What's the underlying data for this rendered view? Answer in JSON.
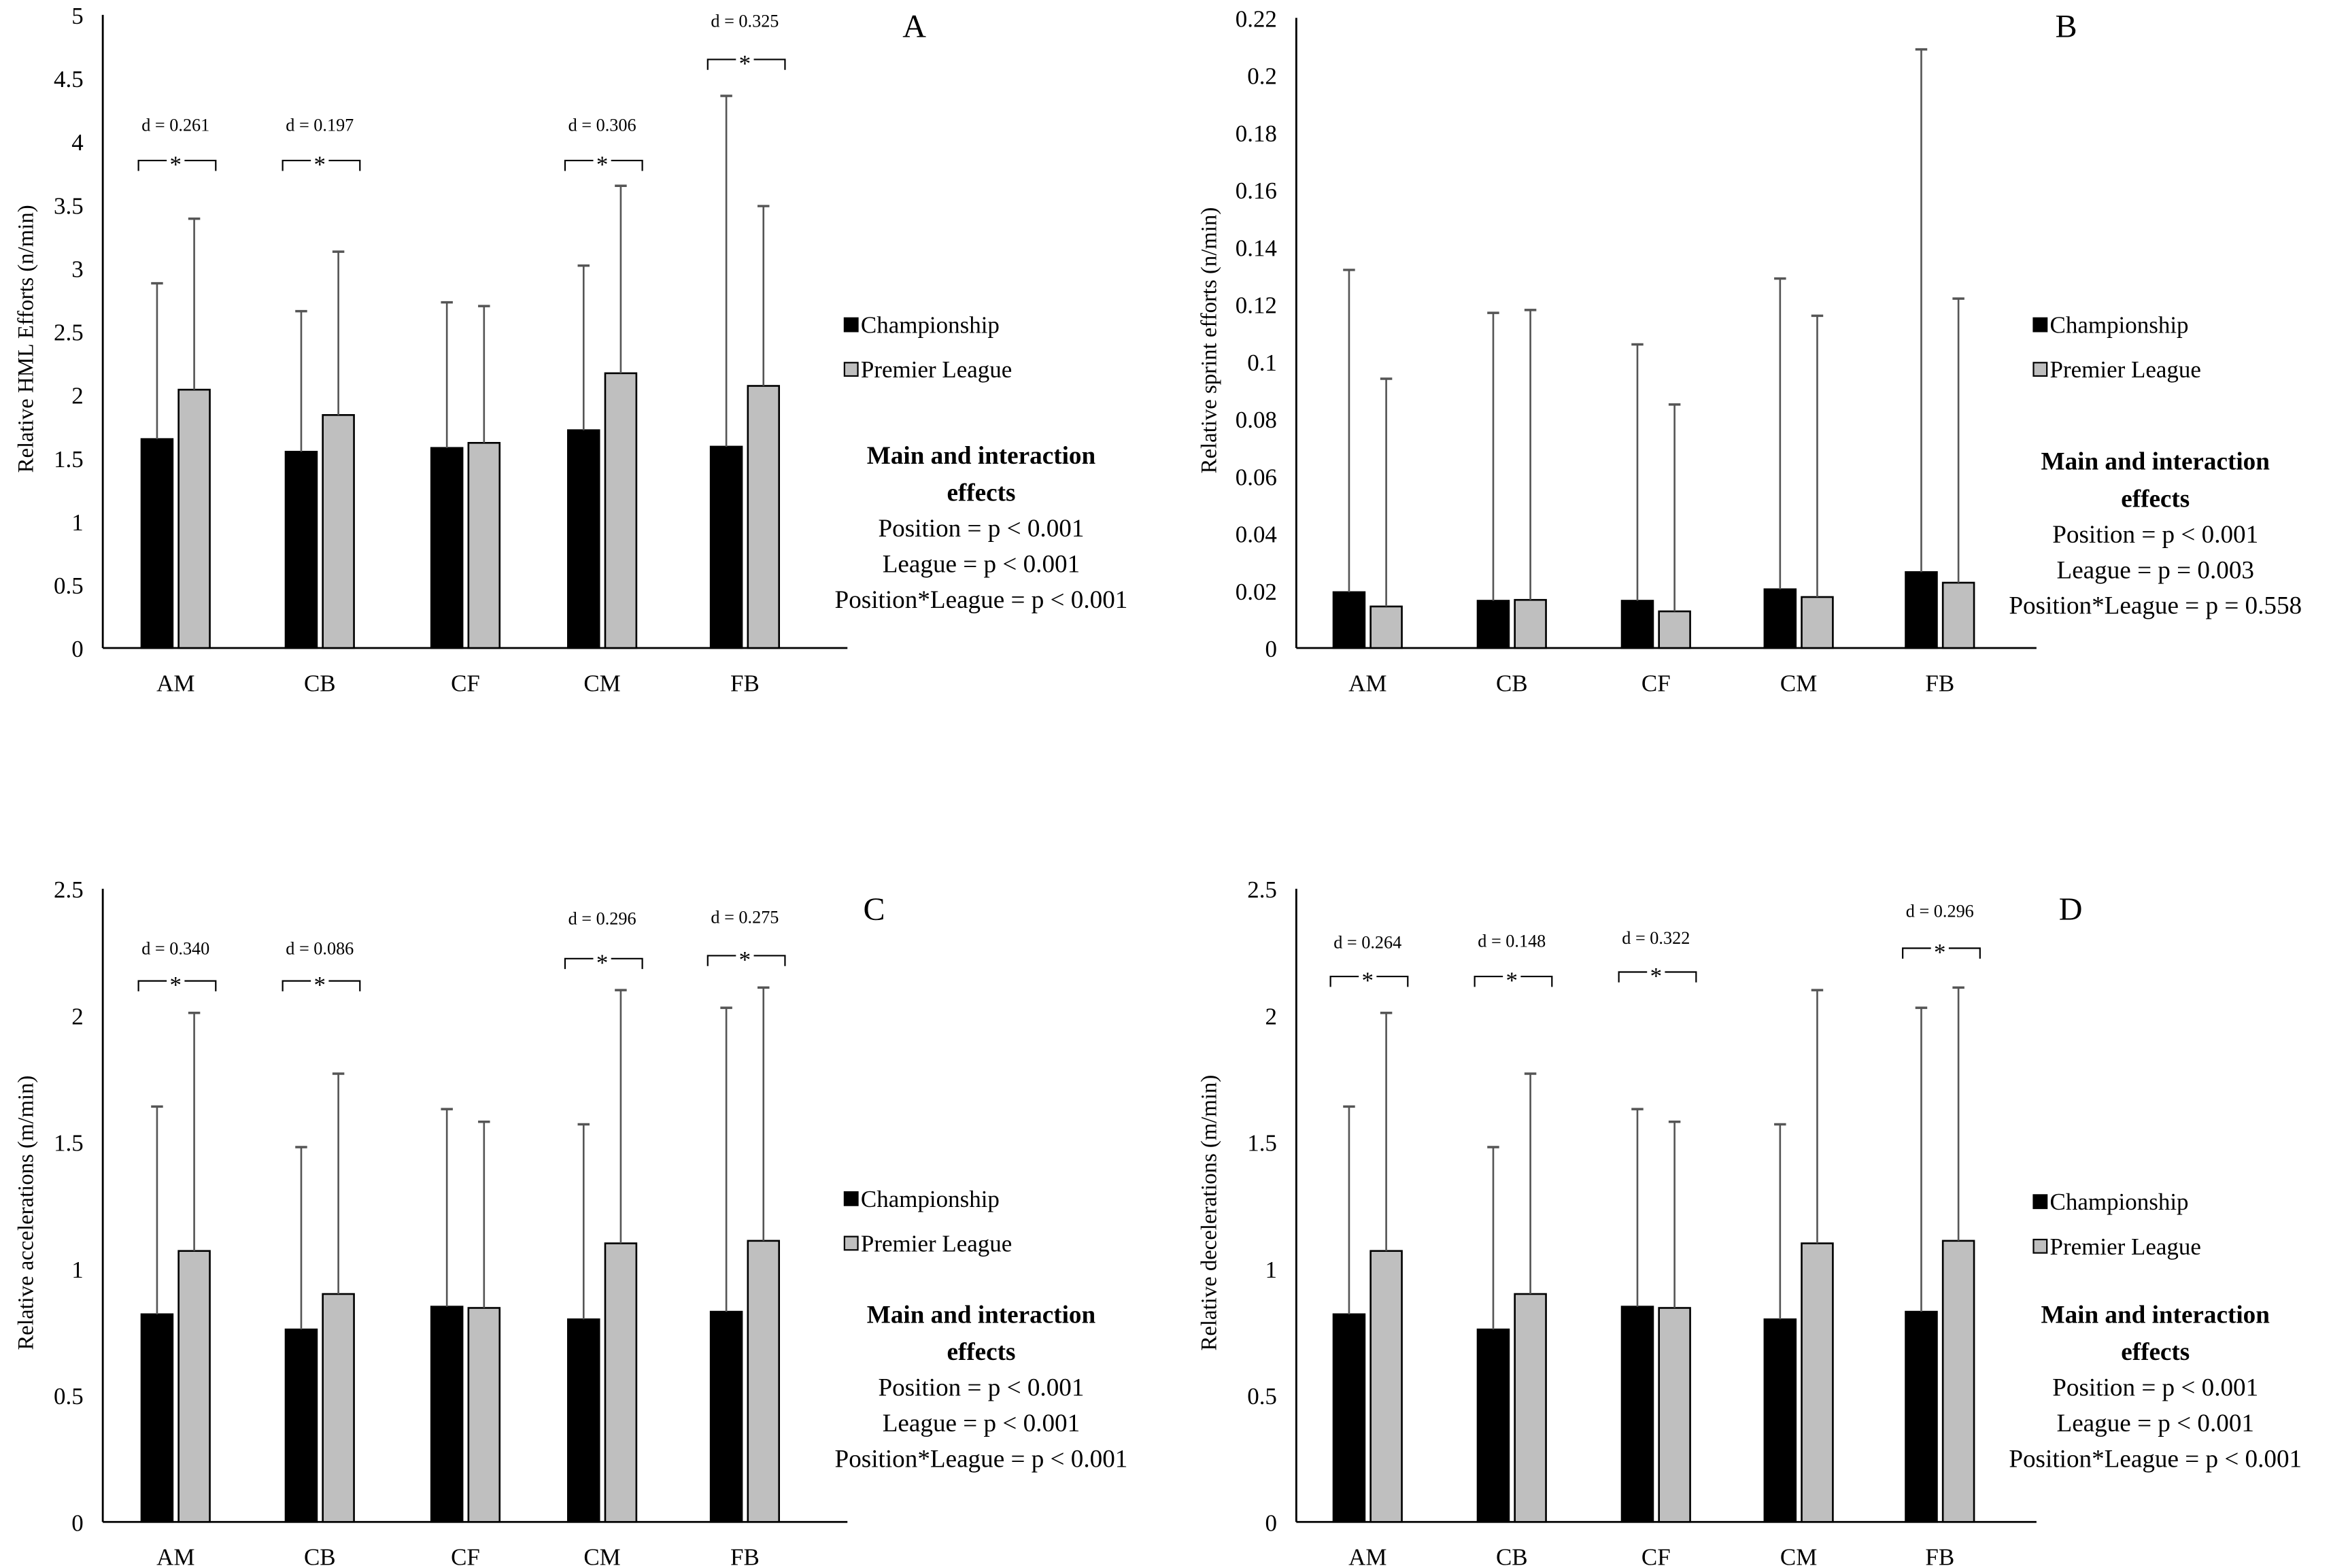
{
  "chart_data": [
    {
      "type": "bar",
      "panel_label": "A",
      "ylabel": "Relative HML Efforts (n/min)",
      "ylim": [
        0,
        5
      ],
      "yticks": [
        "0",
        "0.5",
        "1",
        "1.5",
        "2",
        "2.5",
        "3",
        "3.5",
        "4",
        "4.5",
        "5"
      ],
      "categories": [
        "AM",
        "CB",
        "CF",
        "CM",
        "FB"
      ],
      "series": [
        {
          "name": "Championship",
          "color": "#000000",
          "values": [
            1.65,
            1.55,
            1.58,
            1.72,
            1.59
          ],
          "error_upper": [
            2.88,
            2.66,
            2.73,
            3.02,
            4.36
          ]
        },
        {
          "name": "Premier League",
          "color": "#bfbfbf",
          "values": [
            2.04,
            1.84,
            1.62,
            2.17,
            2.07
          ],
          "error_upper": [
            3.39,
            3.13,
            2.7,
            3.65,
            3.49
          ]
        }
      ],
      "significance": [
        {
          "category": "AM",
          "d": "d = 0.261",
          "marker": "*"
        },
        {
          "category": "CB",
          "d": "d = 0.197",
          "marker": "*"
        },
        {
          "category": "CM",
          "d": "d = 0.306",
          "marker": "*"
        },
        {
          "category": "FB",
          "d": "d = 0.325",
          "marker": "*"
        }
      ],
      "effects": {
        "title_line1": "Main and interaction",
        "title_line2": "effects",
        "lines": [
          "Position = p < 0.001",
          "League = p < 0.001",
          "Position*League = p < 0.001"
        ]
      },
      "legend_position": "right"
    },
    {
      "type": "bar",
      "panel_label": "B",
      "ylabel": "Relative sprint efforts (n/min)",
      "ylim": [
        0,
        0.22
      ],
      "yticks": [
        "0",
        "0.02",
        "0.04",
        "0.06",
        "0.08",
        "0.1",
        "0.12",
        "0.14",
        "0.16",
        "0.18",
        "0.2",
        "0.22"
      ],
      "categories": [
        "AM",
        "CB",
        "CF",
        "CM",
        "FB"
      ],
      "series": [
        {
          "name": "Championship",
          "color": "#000000",
          "values": [
            0.0195,
            0.0165,
            0.0165,
            0.0205,
            0.0265
          ],
          "error_upper": [
            0.132,
            0.117,
            0.106,
            0.129,
            0.209
          ]
        },
        {
          "name": "Premier League",
          "color": "#bfbfbf",
          "values": [
            0.0145,
            0.0168,
            0.0128,
            0.0178,
            0.0228
          ],
          "error_upper": [
            0.094,
            0.118,
            0.085,
            0.116,
            0.122
          ]
        }
      ],
      "significance": [],
      "effects": {
        "title_line1": "Main and interaction",
        "title_line2": "effects",
        "lines": [
          "Position = p < 0.001",
          "League = p = 0.003",
          "Position*League = p = 0.558"
        ]
      },
      "legend_position": "right"
    },
    {
      "type": "bar",
      "panel_label": "C",
      "ylabel": "Relative accelerations (m/min)",
      "ylim": [
        0,
        2.5
      ],
      "yticks": [
        "0",
        "0.5",
        "1",
        "1.5",
        "2",
        "2.5"
      ],
      "categories": [
        "AM",
        "CB",
        "CF",
        "CM",
        "FB"
      ],
      "series": [
        {
          "name": "Championship",
          "color": "#000000",
          "values": [
            0.82,
            0.76,
            0.85,
            0.8,
            0.83
          ],
          "error_upper": [
            1.64,
            1.48,
            1.63,
            1.57,
            2.03
          ]
        },
        {
          "name": "Premier League",
          "color": "#bfbfbf",
          "values": [
            1.07,
            0.9,
            0.845,
            1.1,
            1.11
          ],
          "error_upper": [
            2.01,
            1.77,
            1.58,
            2.1,
            2.11
          ]
        }
      ],
      "significance": [
        {
          "category": "AM",
          "d": "d = 0.340",
          "marker": "*"
        },
        {
          "category": "CB",
          "d": "d = 0.086",
          "marker": "*"
        },
        {
          "category": "CM",
          "d": "d = 0.296",
          "marker": "*"
        },
        {
          "category": "FB",
          "d": "d = 0.275",
          "marker": "*"
        }
      ],
      "effects": {
        "title_line1": "Main and interaction",
        "title_line2": "effects",
        "lines": [
          "Position = p < 0.001",
          "League = p < 0.001",
          "Position*League = p < 0.001"
        ]
      },
      "legend_position": "right"
    },
    {
      "type": "bar",
      "panel_label": "D",
      "ylabel": "Relative decelerations (m/min)",
      "ylim": [
        0,
        2.5
      ],
      "yticks": [
        "0",
        "0.5",
        "1",
        "1.5",
        "2",
        "2.5"
      ],
      "categories": [
        "AM",
        "CB",
        "CF",
        "CM",
        "FB"
      ],
      "series": [
        {
          "name": "Championship",
          "color": "#000000",
          "values": [
            0.82,
            0.76,
            0.85,
            0.8,
            0.83
          ],
          "error_upper": [
            1.64,
            1.48,
            1.63,
            1.57,
            2.03
          ]
        },
        {
          "name": "Premier League",
          "color": "#bfbfbf",
          "values": [
            1.07,
            0.9,
            0.845,
            1.1,
            1.11
          ],
          "error_upper": [
            2.01,
            1.77,
            1.58,
            2.1,
            2.11
          ]
        }
      ],
      "significance": [
        {
          "category": "AM",
          "d": "d = 0.264",
          "marker": "*"
        },
        {
          "category": "CB",
          "d": "d = 0.148",
          "marker": "*"
        },
        {
          "category": "CF",
          "d": "d = 0.322",
          "marker": "*"
        },
        {
          "category": "FB",
          "d": "d = 0.296",
          "marker": "*"
        }
      ],
      "effects": {
        "title_line1": "Main and interaction",
        "title_line2": "effects",
        "lines": [
          "Position = p < 0.001",
          "League = p < 0.001",
          "Position*League = p < 0.001"
        ]
      },
      "legend_position": "right"
    }
  ]
}
